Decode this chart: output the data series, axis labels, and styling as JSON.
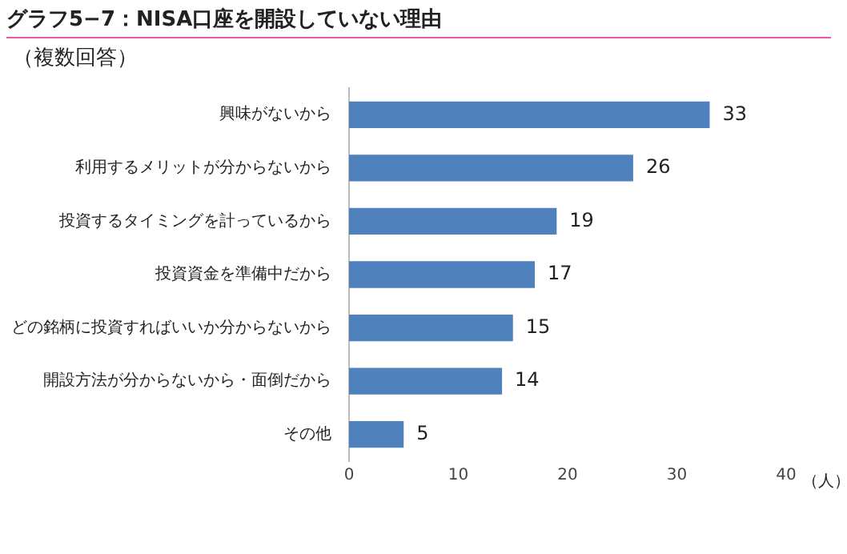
{
  "chart_data": {
    "type": "bar",
    "orientation": "horizontal",
    "title": "グラフ5−7：NISA口座を開設していない理由",
    "subtitle": "（複数回答）",
    "xlabel": "（人）",
    "categories": [
      "興味がないから",
      "利用するメリットが分からないから",
      "投資するタイミングを計っているから",
      "投資資金を準備中だから",
      "どの銘柄に投資すればいいか分からないから",
      "開設方法が分からないから・面倒だから",
      "その他"
    ],
    "values": [
      33,
      26,
      19,
      17,
      15,
      14,
      5
    ],
    "color": "#4f81bd",
    "xlim": [
      0,
      40
    ],
    "xticks": [
      0,
      10,
      20,
      30,
      40
    ],
    "grid": false,
    "data_labels": true
  }
}
